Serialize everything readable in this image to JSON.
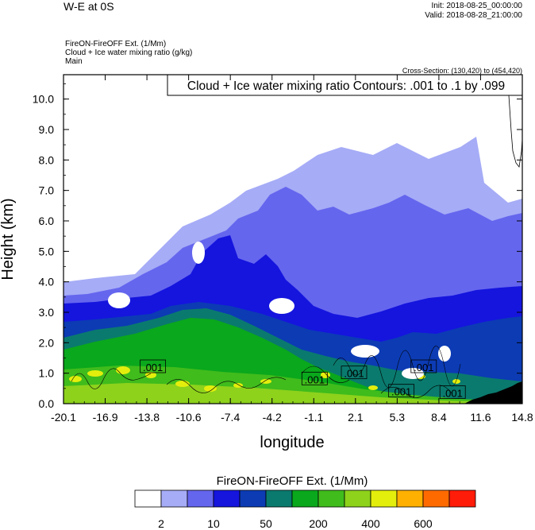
{
  "header": {
    "title": "W-E at 0S",
    "init": "Init: 2018-08-25_00:00:00",
    "valid": "Valid: 2018-08-28_21:00:00",
    "sub_lines": [
      "FireON-FireOFF Ext.   (1/Mm)",
      "Cloud + Ice water mixing ratio   (g/kg)",
      "Main"
    ],
    "cross_section": "Cross-Section: (130,420) to (454,420)"
  },
  "chart_data": {
    "type": "heatmap",
    "title": "FireON-FireOFF Ext.   (1/Mm)",
    "xlabel": "longitude",
    "ylabel": "Height (km)",
    "xlim": [
      -20.1,
      14.8
    ],
    "ylim": [
      0,
      10.8
    ],
    "x_ticks": [
      "-20.1",
      "-16.9",
      "-13.8",
      "-10.6",
      "-7.4",
      "-4.2",
      "-1.1",
      "2.1",
      "5.3",
      "8.4",
      "11.6",
      "14.8"
    ],
    "y_ticks": [
      "0.0",
      "1.0",
      "2.0",
      "3.0",
      "4.0",
      "5.0",
      "6.0",
      "7.0",
      "8.0",
      "9.0",
      "10.0"
    ],
    "contour_legend": "Cloud + Ice water mixing ratio Contours: .001 to .1 by .099",
    "contour_labels": [
      {
        "text": ".001",
        "lon": -13.3,
        "h": 1.2
      },
      {
        "text": ".001",
        "lon": -1.0,
        "h": 0.8
      },
      {
        "text": ".001",
        "lon": 2.0,
        "h": 1.0
      },
      {
        "text": ".001",
        "lon": 7.3,
        "h": 1.2
      },
      {
        "text": ".001",
        "lon": 5.6,
        "h": 0.4
      },
      {
        "text": ".001",
        "lon": 9.5,
        "h": 0.35
      }
    ],
    "colorbar": {
      "title": "FireON-FireOFF Ext.  (1/Mm)",
      "colors": [
        "#ffffff",
        "#a6acf6",
        "#6566ee",
        "#1515de",
        "#0c3bb4",
        "#0a7a6e",
        "#0aa81c",
        "#40bc1c",
        "#8ed21c",
        "#e4ee0c",
        "#ffb000",
        "#ff6a00",
        "#ff1c08"
      ],
      "labels": [
        "2",
        "10",
        "50",
        "200",
        "400",
        "600"
      ]
    }
  }
}
